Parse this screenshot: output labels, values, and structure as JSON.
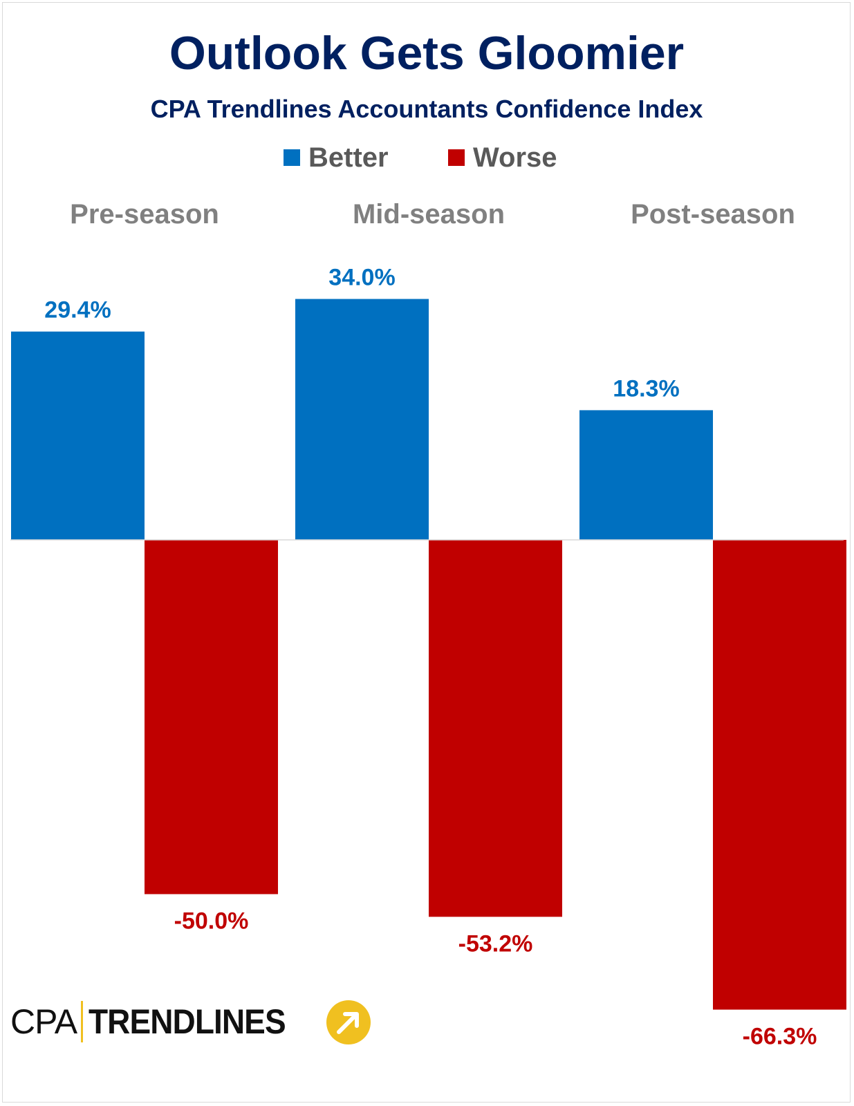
{
  "chart_data": {
    "type": "bar",
    "title": "Outlook Gets Gloomier",
    "subtitle": "CPA Trendlines Accountants Confidence Index",
    "categories": [
      "Pre-season",
      "Mid-season",
      "Post-season"
    ],
    "series": [
      {
        "name": "Better",
        "values": [
          29.4,
          34.0,
          18.3
        ],
        "labels": [
          "29.4%",
          "34.0%",
          "18.3%"
        ],
        "color": "#0070c0"
      },
      {
        "name": "Worse",
        "values": [
          -50.0,
          -53.2,
          -66.3
        ],
        "labels": [
          "-50.0%",
          "-53.2%",
          "-66.3%"
        ],
        "color": "#c00000"
      }
    ],
    "ylim": [
      -70,
      40
    ],
    "grid": false,
    "legend_position": "top-center",
    "category_label_position": "top"
  },
  "colors": {
    "title": "#002060",
    "category_label": "#808080",
    "legend_text": "#595959",
    "baseline": "#d9d9d9"
  },
  "logo": {
    "left_text": "CPA",
    "right_text": "TRENDLINES",
    "icon": "arrow-up-right-circle-icon",
    "icon_color": "#f0c020"
  }
}
